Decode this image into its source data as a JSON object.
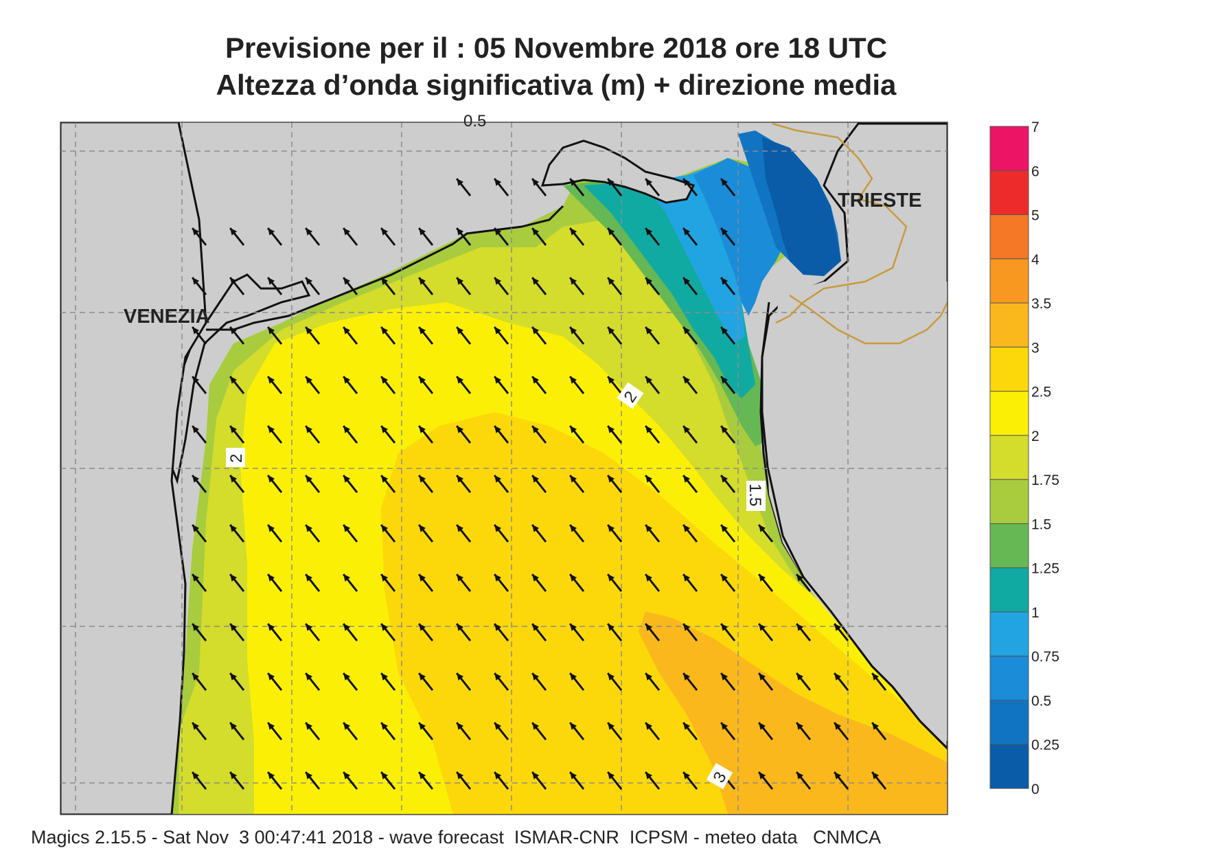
{
  "title": {
    "line1": "Previsione per il  :  05 Novembre  2018   ore 18 UTC",
    "line2": "Altezza d’onda significativa (m) + direzione media"
  },
  "footer": "Magics 2.15.5 - Sat Nov  3 00:47:41 2018 - wave forecast  ISMAR-CNR  ICPSM - meteo data   CNMCA",
  "place_labels": {
    "venezia": "VENEZIA",
    "trieste": "TRIESTE"
  },
  "contour_labels": {
    "top": "0.5",
    "center": "2",
    "west": "2",
    "east": "1.5",
    "south": "3"
  },
  "colorbar": {
    "levels": [
      "0",
      "0.25",
      "0.5",
      "0.75",
      "1",
      "1.25",
      "1.5",
      "1.75",
      "2",
      "2.5",
      "3",
      "3.5",
      "4",
      "5",
      "6",
      "7"
    ],
    "colors": [
      "#0a5ca8",
      "#1174c2",
      "#1a8cd8",
      "#22a4e2",
      "#11aaa2",
      "#66b854",
      "#a8cc3e",
      "#d4dc2c",
      "#fbf005",
      "#fcd80a",
      "#fbb81c",
      "#f89820",
      "#f47826",
      "#ee2b2b",
      "#ec1464"
    ]
  },
  "colors": {
    "land": "#cdcdcd",
    "coast": "#111111",
    "border": "#c99a3c",
    "grid": "#8c8c8c",
    "arrow": "#111111"
  },
  "wave_direction": "northwest"
}
